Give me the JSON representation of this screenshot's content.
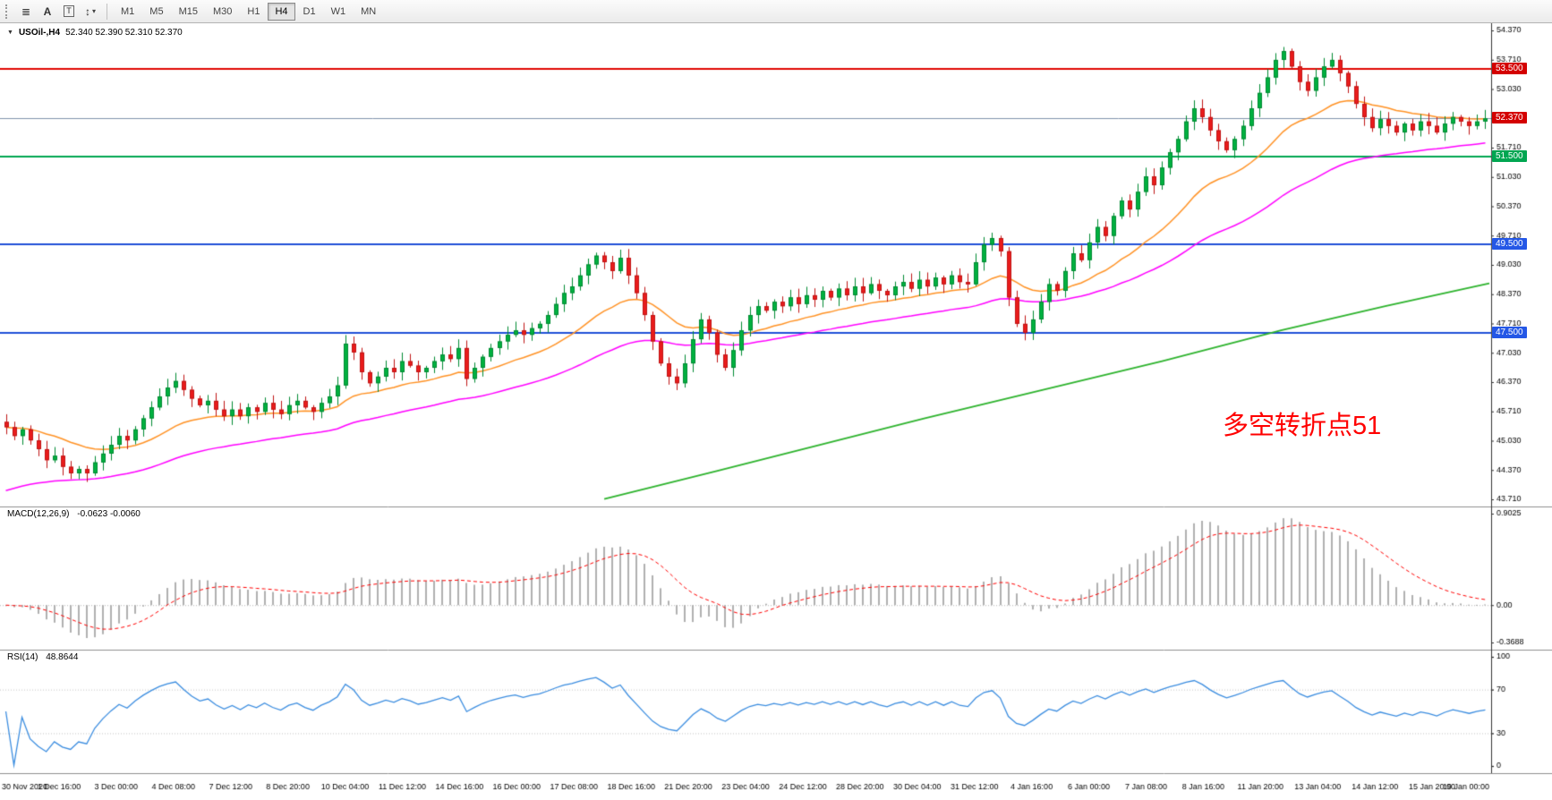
{
  "toolbar": {
    "tools": [
      {
        "id": "lines",
        "label": "≣"
      },
      {
        "id": "text-label",
        "label": "A"
      },
      {
        "id": "text",
        "label": "T"
      },
      {
        "id": "arrows",
        "label": "↕"
      }
    ],
    "dropdown_caret": "▾",
    "timeframes": [
      "M1",
      "M5",
      "M15",
      "M30",
      "H1",
      "H4",
      "D1",
      "W1",
      "MN"
    ],
    "active_timeframe": "H4"
  },
  "chart": {
    "collapse_icon": "▼",
    "symbol": "USOil-,H4",
    "ohlc_text": "52.340 52.390 52.310 52.370"
  },
  "chart_data": {
    "type": "candlestick",
    "symbol": "USOil-",
    "timeframe": "H4",
    "price_range": [
      43.71,
      54.37
    ],
    "y_ticks": [
      "54.370",
      "53.710",
      "53.030",
      "52.370",
      "51.710",
      "51.030",
      "50.370",
      "49.710",
      "49.030",
      "48.370",
      "47.710",
      "47.030",
      "46.370",
      "45.710",
      "45.030",
      "44.370",
      "43.710"
    ],
    "x_labels": [
      "30 Nov 2020",
      "1 Dec 16:00",
      "3 Dec 00:00",
      "4 Dec 08:00",
      "7 Dec 12:00",
      "8 Dec 20:00",
      "10 Dec 04:00",
      "11 Dec 12:00",
      "14 Dec 16:00",
      "16 Dec 00:00",
      "17 Dec 08:00",
      "18 Dec 16:00",
      "21 Dec 20:00",
      "23 Dec 04:00",
      "24 Dec 12:00",
      "28 Dec 20:00",
      "30 Dec 04:00",
      "31 Dec 12:00",
      "4 Jan 16:00",
      "6 Jan 00:00",
      "7 Jan 08:00",
      "8 Jan 16:00",
      "11 Jan 20:00",
      "13 Jan 04:00",
      "14 Jan 12:00",
      "15 Jan 20:00",
      "19 Jan 00:00"
    ],
    "closes": [
      45.35,
      45.15,
      45.3,
      45.05,
      44.85,
      44.6,
      44.7,
      44.45,
      44.3,
      44.4,
      44.3,
      44.55,
      44.75,
      44.95,
      45.15,
      45.05,
      45.3,
      45.55,
      45.8,
      46.05,
      46.25,
      46.4,
      46.2,
      46.0,
      45.85,
      45.95,
      45.75,
      45.6,
      45.75,
      45.6,
      45.8,
      45.7,
      45.9,
      45.75,
      45.65,
      45.85,
      45.95,
      45.8,
      45.7,
      45.9,
      46.05,
      46.3,
      47.25,
      47.05,
      46.6,
      46.35,
      46.5,
      46.7,
      46.6,
      46.85,
      46.75,
      46.6,
      46.7,
      46.85,
      47.0,
      46.9,
      47.15,
      46.45,
      46.7,
      46.95,
      47.15,
      47.3,
      47.45,
      47.55,
      47.45,
      47.6,
      47.7,
      47.9,
      48.15,
      48.4,
      48.55,
      48.8,
      49.05,
      49.25,
      49.1,
      48.9,
      49.2,
      48.8,
      48.4,
      47.9,
      47.3,
      46.8,
      46.5,
      46.35,
      46.8,
      47.35,
      47.8,
      47.5,
      47.0,
      46.7,
      47.1,
      47.55,
      47.9,
      48.1,
      48.0,
      48.2,
      48.1,
      48.3,
      48.15,
      48.35,
      48.25,
      48.45,
      48.3,
      48.5,
      48.35,
      48.55,
      48.4,
      48.6,
      48.45,
      48.35,
      48.55,
      48.65,
      48.5,
      48.7,
      48.55,
      48.75,
      48.6,
      48.8,
      48.65,
      48.6,
      49.1,
      49.5,
      49.65,
      49.35,
      48.3,
      47.7,
      47.5,
      47.8,
      48.2,
      48.6,
      48.45,
      48.9,
      49.3,
      49.15,
      49.55,
      49.9,
      49.7,
      50.15,
      50.5,
      50.3,
      50.7,
      51.05,
      50.85,
      51.25,
      51.6,
      51.9,
      52.3,
      52.6,
      52.4,
      52.1,
      51.85,
      51.65,
      51.9,
      52.2,
      52.6,
      52.95,
      53.3,
      53.7,
      53.9,
      53.55,
      53.2,
      53.0,
      53.3,
      53.55,
      53.7,
      53.4,
      53.1,
      52.7,
      52.4,
      52.15,
      52.35,
      52.2,
      52.05,
      52.25,
      52.1,
      52.3,
      52.2,
      52.05,
      52.25,
      52.4,
      52.3,
      52.2,
      52.3,
      52.37
    ],
    "levels": [
      {
        "price": 53.5,
        "label": "53.500",
        "line_color": "#e10600",
        "badge_color": "#d40000",
        "width": 2
      },
      {
        "price": 51.5,
        "label": "51.500",
        "line_color": "#00a651",
        "badge_color": "#00a651",
        "width": 2
      },
      {
        "price": 49.5,
        "label": "49.500",
        "line_color": "#1f4fd8",
        "badge_color": "#2457e6",
        "width": 2
      },
      {
        "price": 47.5,
        "label": "47.500",
        "line_color": "#1f4fd8",
        "badge_color": "#2457e6",
        "width": 2
      }
    ],
    "current_price": {
      "value": 52.37,
      "label": "52.370",
      "line_color": "#8194ad",
      "badge_color": "#d40000"
    },
    "ma_long_waypoints": [
      [
        0.405,
        43.72
      ],
      [
        0.48,
        44.35
      ],
      [
        0.55,
        44.95
      ],
      [
        0.62,
        45.55
      ],
      [
        0.7,
        46.2
      ],
      [
        0.78,
        46.85
      ],
      [
        0.86,
        47.55
      ],
      [
        0.93,
        48.1
      ],
      [
        1.0,
        48.62
      ]
    ],
    "macd": {
      "label": "MACD(12,26,9)",
      "values_label": "-0.0623 -0.0060",
      "scale": [
        -0.3688,
        0.9025
      ],
      "ticks": [
        {
          "value": 0.9025,
          "label": "0.9025"
        },
        {
          "value": 0,
          "label": "0.00"
        },
        {
          "value": -0.3688,
          "label": "-0.3688"
        }
      ]
    },
    "rsi": {
      "label": "RSI(14)",
      "value_label": "48.8644",
      "ticks": [
        {
          "value": 100,
          "label": "100"
        },
        {
          "value": 70,
          "label": "70"
        },
        {
          "value": 30,
          "label": "30"
        },
        {
          "value": 0,
          "label": "0"
        }
      ],
      "guide_levels": [
        70,
        30
      ]
    },
    "annotation": {
      "text": "多空转折点51",
      "color": "#ff0000"
    },
    "colors": {
      "up": "#00b140",
      "up_border": "#008a32",
      "down": "#ea1c1c",
      "down_border": "#c01414",
      "ma_fast": "#ff9224",
      "ma_slow": "#ff00ff",
      "ma_long": "#2db32d",
      "macd_hist": "#b0b0b0",
      "macd_signal": "#ff0000",
      "rsi": "#3b8de0",
      "background": "#ffffff",
      "axis_text": "#000000"
    }
  }
}
